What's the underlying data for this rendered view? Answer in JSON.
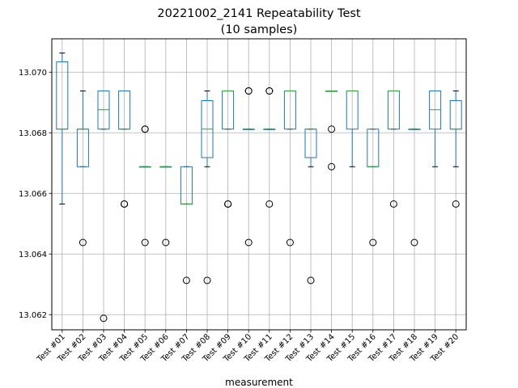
{
  "chart_data": {
    "type": "boxplot",
    "title": "20221002_2141 Repeatability Test",
    "subtitle": "(10 samples)",
    "xlabel": "measurement",
    "ylabel": "",
    "ylim": [
      13.0615,
      13.0711
    ],
    "yticks": [
      "13.062",
      "13.064",
      "13.066",
      "13.068",
      "13.070"
    ],
    "grid": true,
    "colors": {
      "box": "#1f77b4",
      "median": "#2ca02c",
      "whisker": "#1f77b4",
      "outlier": "#000000",
      "grid": "#b0b0b0"
    },
    "series": [
      {
        "category": "Test #01",
        "whislo": 13.06565,
        "q1": 13.06812,
        "median": 13.06812,
        "q3": 13.07034,
        "whishi": 13.07063,
        "fliers": []
      },
      {
        "category": "Test #02",
        "whislo": 13.06688,
        "q1": 13.06688,
        "median": 13.06812,
        "q3": 13.06812,
        "whishi": 13.06938,
        "fliers": [
          13.06438
        ]
      },
      {
        "category": "Test #03",
        "whislo": 13.06812,
        "q1": 13.06812,
        "median": 13.06876,
        "q3": 13.06938,
        "whishi": 13.06938,
        "fliers": [
          13.06188
        ]
      },
      {
        "category": "Test #04",
        "whislo": 13.06812,
        "q1": 13.06812,
        "median": 13.06812,
        "q3": 13.06938,
        "whishi": 13.06938,
        "fliers": [
          13.06565,
          13.06565
        ]
      },
      {
        "category": "Test #05",
        "whislo": 13.06688,
        "q1": 13.06688,
        "median": 13.06688,
        "q3": 13.06688,
        "whishi": 13.06688,
        "fliers": [
          13.06438,
          13.06812,
          13.06812
        ]
      },
      {
        "category": "Test #06",
        "whislo": 13.06688,
        "q1": 13.06688,
        "median": 13.06688,
        "q3": 13.06688,
        "whishi": 13.06688,
        "fliers": [
          13.06438
        ]
      },
      {
        "category": "Test #07",
        "whislo": 13.06565,
        "q1": 13.06565,
        "median": 13.06565,
        "q3": 13.06688,
        "whishi": 13.06688,
        "fliers": [
          13.06313
        ]
      },
      {
        "category": "Test #08",
        "whislo": 13.06688,
        "q1": 13.06718,
        "median": 13.06812,
        "q3": 13.06906,
        "whishi": 13.06938,
        "fliers": [
          13.06313
        ]
      },
      {
        "category": "Test #09",
        "whislo": 13.06812,
        "q1": 13.06812,
        "median": 13.06938,
        "q3": 13.06938,
        "whishi": 13.06938,
        "fliers": [
          13.06565,
          13.06565
        ]
      },
      {
        "category": "Test #10",
        "whislo": 13.06812,
        "q1": 13.06812,
        "median": 13.06812,
        "q3": 13.06812,
        "whishi": 13.06812,
        "fliers": [
          13.06438,
          13.06938,
          13.06938
        ]
      },
      {
        "category": "Test #11",
        "whislo": 13.06812,
        "q1": 13.06812,
        "median": 13.06812,
        "q3": 13.06812,
        "whishi": 13.06812,
        "fliers": [
          13.06565,
          13.06938,
          13.06938
        ]
      },
      {
        "category": "Test #12",
        "whislo": 13.06812,
        "q1": 13.06812,
        "median": 13.06938,
        "q3": 13.06938,
        "whishi": 13.06938,
        "fliers": [
          13.06438
        ]
      },
      {
        "category": "Test #13",
        "whislo": 13.06688,
        "q1": 13.06718,
        "median": 13.06812,
        "q3": 13.06812,
        "whishi": 13.06812,
        "fliers": [
          13.06313
        ]
      },
      {
        "category": "Test #14",
        "whislo": 13.06938,
        "q1": 13.06938,
        "median": 13.06938,
        "q3": 13.06938,
        "whishi": 13.06938,
        "fliers": [
          13.06688,
          13.06812
        ]
      },
      {
        "category": "Test #15",
        "whislo": 13.06688,
        "q1": 13.06812,
        "median": 13.06938,
        "q3": 13.06938,
        "whishi": 13.06938,
        "fliers": []
      },
      {
        "category": "Test #16",
        "whislo": 13.06688,
        "q1": 13.06688,
        "median": 13.06688,
        "q3": 13.06812,
        "whishi": 13.06812,
        "fliers": [
          13.06438
        ]
      },
      {
        "category": "Test #17",
        "whislo": 13.06812,
        "q1": 13.06812,
        "median": 13.06938,
        "q3": 13.06938,
        "whishi": 13.06938,
        "fliers": [
          13.06565
        ]
      },
      {
        "category": "Test #18",
        "whislo": 13.06812,
        "q1": 13.06812,
        "median": 13.06812,
        "q3": 13.06812,
        "whishi": 13.06812,
        "fliers": [
          13.06438
        ]
      },
      {
        "category": "Test #19",
        "whislo": 13.06688,
        "q1": 13.06812,
        "median": 13.06876,
        "q3": 13.06938,
        "whishi": 13.06938,
        "fliers": []
      },
      {
        "category": "Test #20",
        "whislo": 13.06688,
        "q1": 13.06812,
        "median": 13.06812,
        "q3": 13.06906,
        "whishi": 13.06938,
        "fliers": [
          13.06565
        ]
      }
    ]
  }
}
